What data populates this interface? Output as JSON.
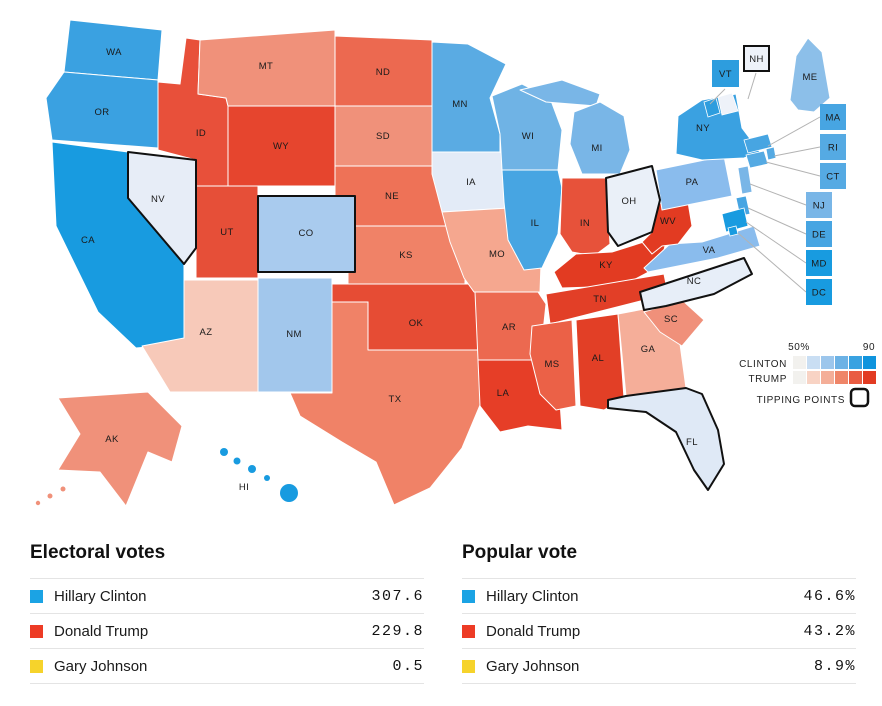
{
  "map": {
    "states": [
      {
        "id": "WA",
        "label": "WA",
        "color": "#3aa1e1",
        "tipping": false
      },
      {
        "id": "OR",
        "label": "OR",
        "color": "#3aa1e1",
        "tipping": false
      },
      {
        "id": "CA",
        "label": "CA",
        "color": "#189be0",
        "tipping": false
      },
      {
        "id": "NV",
        "label": "NV",
        "color": "#e7edf7",
        "tipping": true
      },
      {
        "id": "ID",
        "label": "ID",
        "color": "#e8503a",
        "tipping": false
      },
      {
        "id": "MT",
        "label": "MT",
        "color": "#f0917a",
        "tipping": false
      },
      {
        "id": "WY",
        "label": "WY",
        "color": "#e6452e",
        "tipping": false
      },
      {
        "id": "UT",
        "label": "UT",
        "color": "#e64f38",
        "tipping": false
      },
      {
        "id": "CO",
        "label": "CO",
        "color": "#a9cbee",
        "tipping": true
      },
      {
        "id": "AZ",
        "label": "AZ",
        "color": "#f7c9b9",
        "tipping": false
      },
      {
        "id": "NM",
        "label": "NM",
        "color": "#a2c7ec",
        "tipping": false
      },
      {
        "id": "ND",
        "label": "ND",
        "color": "#ec6950",
        "tipping": false
      },
      {
        "id": "SD",
        "label": "SD",
        "color": "#f0917a",
        "tipping": false
      },
      {
        "id": "NE",
        "label": "NE",
        "color": "#ee7257",
        "tipping": false
      },
      {
        "id": "KS",
        "label": "KS",
        "color": "#f08267",
        "tipping": false
      },
      {
        "id": "OK",
        "label": "OK",
        "color": "#e64c34",
        "tipping": false
      },
      {
        "id": "TX",
        "label": "TX",
        "color": "#f08267",
        "tipping": false
      },
      {
        "id": "MN",
        "label": "MN",
        "color": "#5aabe3",
        "tipping": false
      },
      {
        "id": "IA",
        "label": "IA",
        "color": "#e3ebf7",
        "tipping": false
      },
      {
        "id": "MO",
        "label": "MO",
        "color": "#f5a78f",
        "tipping": false
      },
      {
        "id": "AR",
        "label": "AR",
        "color": "#ec6950",
        "tipping": false
      },
      {
        "id": "LA",
        "label": "LA",
        "color": "#e63e27",
        "tipping": false
      },
      {
        "id": "WI",
        "label": "WI",
        "color": "#6fb3e5",
        "tipping": false
      },
      {
        "id": "IL",
        "label": "IL",
        "color": "#47a5e2",
        "tipping": false
      },
      {
        "id": "MI",
        "label": "MI",
        "color": "#79b6e7",
        "tipping": false
      },
      {
        "id": "IN",
        "label": "IN",
        "color": "#e7523a",
        "tipping": false
      },
      {
        "id": "OH",
        "label": "OH",
        "color": "#eaf0f8",
        "tipping": true
      },
      {
        "id": "KY",
        "label": "KY",
        "color": "#e23b22",
        "tipping": false
      },
      {
        "id": "TN",
        "label": "TN",
        "color": "#e23f27",
        "tipping": false
      },
      {
        "id": "MS",
        "label": "MS",
        "color": "#eb6147",
        "tipping": false
      },
      {
        "id": "AL",
        "label": "AL",
        "color": "#e23f26",
        "tipping": false
      },
      {
        "id": "GA",
        "label": "GA",
        "color": "#f5ae99",
        "tipping": false
      },
      {
        "id": "FL",
        "label": "FL",
        "color": "#dfe9f6",
        "tipping": true
      },
      {
        "id": "SC",
        "label": "SC",
        "color": "#f0907a",
        "tipping": false
      },
      {
        "id": "NC",
        "label": "NC",
        "color": "#e7eef8",
        "tipping": true
      },
      {
        "id": "VA",
        "label": "VA",
        "color": "#8abced",
        "tipping": false
      },
      {
        "id": "WV",
        "label": "WV",
        "color": "#e23b22",
        "tipping": false
      },
      {
        "id": "PA",
        "label": "PA",
        "color": "#8abced",
        "tipping": false
      },
      {
        "id": "NY",
        "label": "NY",
        "color": "#3aa1e1",
        "tipping": false
      },
      {
        "id": "ME",
        "label": "ME",
        "color": "#8cbfe9",
        "tipping": false
      },
      {
        "id": "VT",
        "label": "VT",
        "color": "#2d9dde",
        "tipping": false
      },
      {
        "id": "NH",
        "label": "NH",
        "color": "#eef2f9",
        "tipping": true
      },
      {
        "id": "MA",
        "label": "MA",
        "color": "#47a5e2",
        "tipping": false
      },
      {
        "id": "RI",
        "label": "RI",
        "color": "#55aae3",
        "tipping": false
      },
      {
        "id": "CT",
        "label": "CT",
        "color": "#55aae3",
        "tipping": false
      },
      {
        "id": "NJ",
        "label": "NJ",
        "color": "#79b6e7",
        "tipping": false
      },
      {
        "id": "DE",
        "label": "DE",
        "color": "#47a5e2",
        "tipping": false
      },
      {
        "id": "MD",
        "label": "MD",
        "color": "#189be0",
        "tipping": false
      },
      {
        "id": "DC",
        "label": "DC",
        "color": "#189be0",
        "tipping": false
      },
      {
        "id": "AK",
        "label": "AK",
        "color": "#f0917a",
        "tipping": false
      },
      {
        "id": "HI",
        "label": "HI",
        "color": "#189be0",
        "tipping": false
      }
    ],
    "legend": {
      "scale_min": "50%",
      "scale_max": "90",
      "rows": [
        {
          "label": "CLINTON",
          "ramp": [
            "#f2f1ee",
            "#c9def3",
            "#9cc6ec",
            "#6cb2e5",
            "#39a2e1",
            "#0f94dd"
          ]
        },
        {
          "label": "TRUMP",
          "ramp": [
            "#f2f1ee",
            "#f8d3c4",
            "#f4ae98",
            "#ef8568",
            "#e95c42",
            "#e23b22"
          ]
        }
      ],
      "tipping_label": "TIPPING POINTS"
    }
  },
  "tables": [
    {
      "title": "Electoral votes",
      "rows": [
        {
          "name": "Hillary Clinton",
          "value": "307.6",
          "color": "#1ba3e4"
        },
        {
          "name": "Donald Trump",
          "value": "229.8",
          "color": "#ed3b25"
        },
        {
          "name": "Gary Johnson",
          "value": "0.5",
          "color": "#f6d32b"
        }
      ]
    },
    {
      "title": "Popular vote",
      "rows": [
        {
          "name": "Hillary Clinton",
          "value": "46.6%",
          "color": "#1ba3e4"
        },
        {
          "name": "Donald Trump",
          "value": "43.2%",
          "color": "#ed3b25"
        },
        {
          "name": "Gary Johnson",
          "value": "8.9%",
          "color": "#f6d32b"
        }
      ]
    }
  ]
}
